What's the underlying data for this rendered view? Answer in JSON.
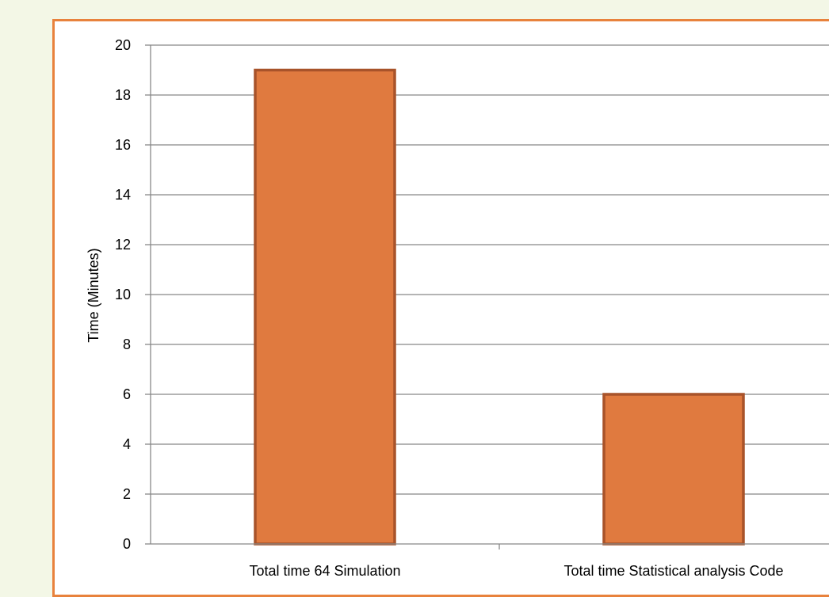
{
  "chart_data": {
    "type": "bar",
    "title": "",
    "xlabel": "",
    "ylabel": "Time (Minutes)",
    "ylim": [
      0,
      20
    ],
    "yticks": [
      0,
      2,
      4,
      6,
      8,
      10,
      12,
      14,
      16,
      18,
      20
    ],
    "categories": [
      "Total time 64 Simulation",
      "Total time Statistical analysis Code"
    ],
    "values": [
      19,
      6
    ],
    "grid": true,
    "legend": "none",
    "colors": {
      "bar_fill": "#e07a3f",
      "bar_stroke": "#a8532a",
      "grid": "#888888",
      "frame": "#e8823c",
      "page_background": "#f3f7e6"
    }
  }
}
